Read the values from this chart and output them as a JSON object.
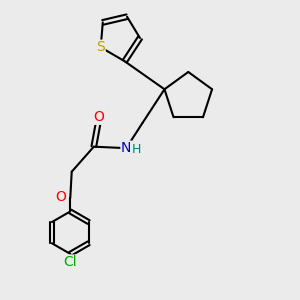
{
  "background_color": "#ebebeb",
  "bond_color": "#000000",
  "bond_width": 1.5,
  "atom_colors": {
    "S": "#b8a000",
    "N": "#0000cc",
    "O": "#ff0000",
    "Cl": "#00aa00",
    "H": "#008080",
    "C": "#000000"
  },
  "font_size": 9,
  "figsize": [
    3.0,
    3.0
  ],
  "dpi": 100,
  "xlim": [
    0,
    10
  ],
  "ylim": [
    0,
    10
  ]
}
